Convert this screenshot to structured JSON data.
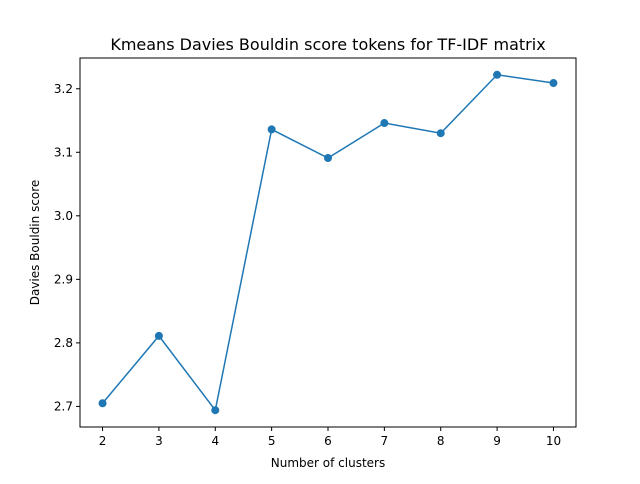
{
  "chart_data": {
    "type": "line",
    "title": "Kmeans Davies Bouldin score tokens for TF-IDF matrix",
    "xlabel": "Number of clusters",
    "ylabel": "Davies Bouldin score",
    "x": [
      2,
      3,
      4,
      5,
      6,
      7,
      8,
      9,
      10
    ],
    "series": [
      {
        "values": [
          2.705,
          2.811,
          2.694,
          3.136,
          3.091,
          3.146,
          3.13,
          3.222,
          3.209
        ],
        "color": "#1f77b4",
        "marker": "circle"
      }
    ],
    "xticks": [
      "2",
      "3",
      "4",
      "5",
      "6",
      "7",
      "8",
      "9",
      "10"
    ],
    "yticks": [
      2.7,
      2.8,
      2.9,
      3.0,
      3.1,
      3.2
    ],
    "ytick_labels": [
      "2.7",
      "2.8",
      "2.9",
      "3.0",
      "3.1",
      "3.2"
    ],
    "xlim": [
      1.6,
      10.4
    ],
    "ylim": [
      2.6676,
      3.2484
    ],
    "grid": false,
    "legend": "none"
  }
}
